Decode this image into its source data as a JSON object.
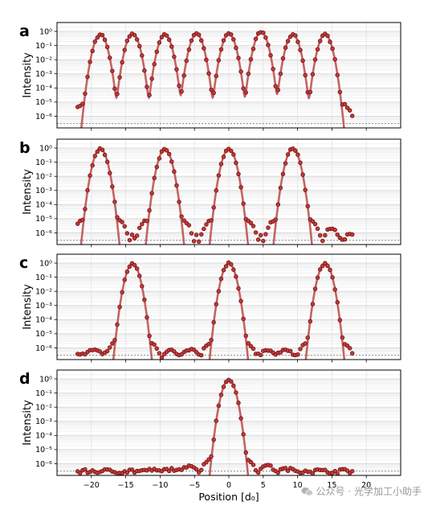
{
  "chart_data": {
    "type": "scatter",
    "xlabel": "Position [d₀]",
    "ylabel": "Intensity",
    "xlim": [
      -25,
      25
    ],
    "ylim_log10": [
      -6.6,
      0.4
    ],
    "x_ticks": [
      -20,
      -15,
      -10,
      -5,
      0,
      5,
      10,
      15,
      20
    ],
    "y_ticks": [
      "10⁻⁶",
      "10⁻⁵",
      "10⁻⁴",
      "10⁻³",
      "10⁻²",
      "10⁻¹",
      "10⁰"
    ],
    "grid": true,
    "noise_floor": 3e-07,
    "marker_color": "#a32222",
    "line_color": "#b94a4a",
    "panels": [
      {
        "letter": "a",
        "ylabel": "Intensity",
        "x_range": [
          -22,
          18
        ],
        "side_lobe_level": 1e-05,
        "background": 8e-07,
        "peaks": [
          {
            "x": -18.7,
            "y": 0.6
          },
          {
            "x": -14.0,
            "y": 0.7
          },
          {
            "x": -9.3,
            "y": 0.6
          },
          {
            "x": -4.7,
            "y": 0.65
          },
          {
            "x": 0,
            "y": 0.65
          },
          {
            "x": 4.7,
            "y": 0.9
          },
          {
            "x": 9.3,
            "y": 0.6
          },
          {
            "x": 14.0,
            "y": 0.6
          }
        ]
      },
      {
        "letter": "b",
        "ylabel": "Intensity",
        "x_range": [
          -22,
          18
        ],
        "side_lobe_level": 1.2e-05,
        "background": 3e-07,
        "peaks": [
          {
            "x": -18.7,
            "y": 0.9
          },
          {
            "x": -9.3,
            "y": 0.8
          },
          {
            "x": 0,
            "y": 0.85
          },
          {
            "x": 9.3,
            "y": 0.9
          }
        ]
      },
      {
        "letter": "c",
        "ylabel": "Intensity",
        "x_range": [
          -22,
          18
        ],
        "side_lobe_level": 3e-06,
        "background": 3e-07,
        "peaks": [
          {
            "x": -14.0,
            "y": 0.9
          },
          {
            "x": 0,
            "y": 0.95
          },
          {
            "x": 14.0,
            "y": 0.95
          }
        ]
      },
      {
        "letter": "d",
        "ylabel": "Intensity",
        "x_range": [
          -22,
          18
        ],
        "side_lobe_level": 3e-06,
        "background": 3e-07,
        "peaks": [
          {
            "x": 0,
            "y": 0.9
          }
        ]
      }
    ]
  },
  "watermark": {
    "icon": "wechat-icon",
    "text": "公众号 · 光学加工小助手"
  }
}
